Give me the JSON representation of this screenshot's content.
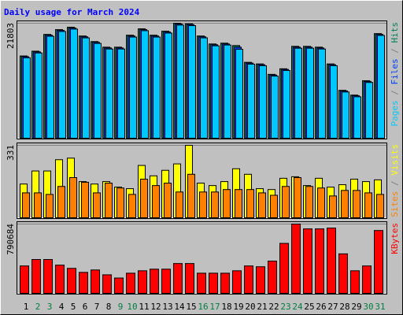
{
  "chart_data": [
    {
      "type": "bar",
      "title": "Daily usage for March 2024",
      "ylim": [
        0,
        21803
      ],
      "yticks": [
        21803
      ],
      "series": [
        {
          "name": "Hits",
          "color": "#00805c",
          "values": [
            15640,
            16540,
            19700,
            20600,
            21050,
            19400,
            18350,
            17300,
            17300,
            19550,
            20750,
            19550,
            20300,
            21803,
            21700,
            19400,
            17900,
            18050,
            17600,
            14440,
            14140,
            12180,
            13230,
            17450,
            17450,
            17300,
            14140,
            9170,
            8270,
            10980,
            19850
          ]
        },
        {
          "name": "Files",
          "color": "#0040ff",
          "values": [
            15500,
            16400,
            19550,
            20450,
            20900,
            19250,
            18200,
            17150,
            17150,
            19400,
            20600,
            19400,
            20150,
            21650,
            21550,
            19250,
            17750,
            17900,
            17300,
            14300,
            14000,
            12050,
            13100,
            17300,
            17300,
            17150,
            14000,
            9050,
            8150,
            10850,
            19700
          ]
        },
        {
          "name": "Pages",
          "color": "#00c8ff",
          "values": [
            15300,
            16200,
            19350,
            20250,
            20700,
            19050,
            18000,
            16950,
            16950,
            19200,
            20400,
            19200,
            19950,
            21450,
            21350,
            19050,
            17550,
            17700,
            16900,
            14100,
            13800,
            11850,
            12900,
            17100,
            17100,
            16950,
            13800,
            8850,
            7950,
            10650,
            19500
          ]
        }
      ]
    },
    {
      "type": "bar",
      "ylim": [
        0,
        331
      ],
      "yticks": [
        331
      ],
      "series": [
        {
          "name": "Visits",
          "color": "#ffff00",
          "values": [
            156,
            215,
            215,
            266,
            273,
            167,
            156,
            167,
            142,
            135,
            240,
            193,
            218,
            247,
            331,
            160,
            149,
            167,
            225,
            200,
            135,
            131,
            182,
            189,
            149,
            182,
            142,
            153,
            178,
            167,
            175
          ]
        },
        {
          "name": "Sites",
          "color": "#ff8000",
          "values": [
            116,
            116,
            109,
            145,
            185,
            164,
            116,
            160,
            138,
            109,
            178,
            149,
            160,
            120,
            200,
            120,
            120,
            131,
            131,
            131,
            116,
            105,
            145,
            185,
            145,
            138,
            102,
            127,
            127,
            116,
            109
          ]
        }
      ]
    },
    {
      "type": "bar",
      "ylim": [
        0,
        790684
      ],
      "yticks": [
        790684
      ],
      "categories": [
        "1",
        "2",
        "3",
        "4",
        "5",
        "6",
        "7",
        "8",
        "9",
        "10",
        "11",
        "12",
        "13",
        "14",
        "15",
        "16",
        "17",
        "18",
        "19",
        "20",
        "21",
        "22",
        "23",
        "24",
        "25",
        "26",
        "27",
        "28",
        "29",
        "30",
        "31"
      ],
      "category_colors": [
        "#000000",
        "#008040",
        "#008040",
        "#000000",
        "#000000",
        "#000000",
        "#000000",
        "#000000",
        "#008040",
        "#008040",
        "#000000",
        "#000000",
        "#000000",
        "#000000",
        "#000000",
        "#008040",
        "#008040",
        "#000000",
        "#000000",
        "#000000",
        "#000000",
        "#000000",
        "#008040",
        "#008040",
        "#000000",
        "#000000",
        "#000000",
        "#000000",
        "#000000",
        "#008040",
        "#008040"
      ],
      "series": [
        {
          "name": "KBytes",
          "color": "#ff0000",
          "values": [
            318100,
            390800,
            390800,
            327200,
            290800,
            245400,
            272600,
            218100,
            181800,
            236300,
            263600,
            281700,
            281700,
            345300,
            345300,
            236300,
            236300,
            236300,
            263600,
            318100,
            309000,
            372600,
            572500,
            790684,
            736100,
            736100,
            745200,
            454400,
            263600,
            318100,
            717900
          ]
        }
      ]
    }
  ]
}
